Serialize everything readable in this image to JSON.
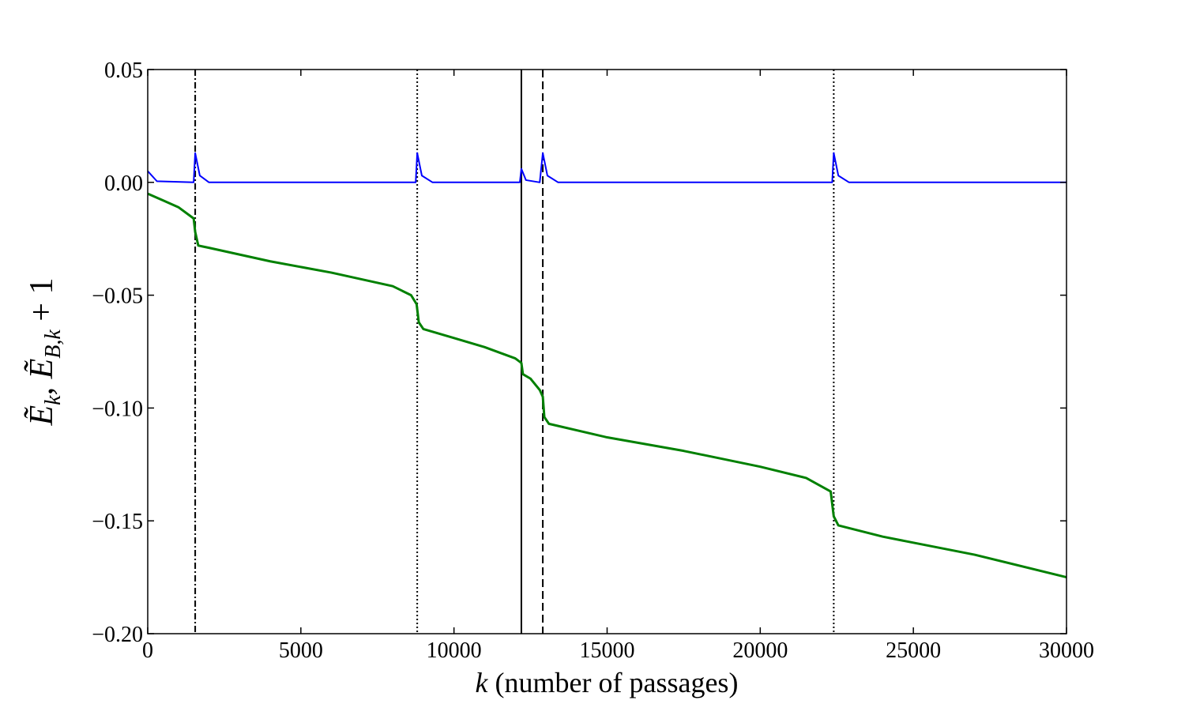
{
  "chart_data": {
    "type": "line",
    "xlabel": [
      "k",
      " (number of passages)"
    ],
    "ylabel": [
      "Ẽ",
      "k",
      ",  Ẽ",
      "B,k",
      " + 1"
    ],
    "xlim": [
      0,
      30000
    ],
    "ylim": [
      -0.2,
      0.05
    ],
    "xticks": [
      0,
      5000,
      10000,
      15000,
      20000,
      25000,
      30000
    ],
    "yticks": [
      {
        "value": -0.2,
        "label": "−0.20"
      },
      {
        "value": -0.15,
        "label": "−0.15"
      },
      {
        "value": -0.1,
        "label": "−0.10"
      },
      {
        "value": -0.05,
        "label": "−0.05"
      },
      {
        "value": 0,
        "label": "0.00"
      },
      {
        "value": 0.05,
        "label": "0.05"
      }
    ],
    "series": [
      {
        "color": "#0000ff",
        "x": [
          0,
          300,
          1500,
          1550,
          1700,
          2000,
          8750,
          8800,
          8950,
          9300,
          12150,
          12200,
          12350,
          12800,
          12900,
          13050,
          13400,
          22350,
          22400,
          22550,
          22900,
          30000
        ],
        "values": [
          0.005,
          0.0005,
          0,
          0.013,
          0.003,
          0,
          0,
          0.013,
          0.003,
          0,
          0,
          0.006,
          0.001,
          0,
          0.013,
          0.003,
          0,
          0,
          0.013,
          0.003,
          0,
          0
        ]
      },
      {
        "color": "#008000",
        "x": [
          0,
          500,
          1000,
          1500,
          1550,
          1650,
          2000,
          4000,
          6000,
          8000,
          8600,
          8780,
          8850,
          9000,
          10000,
          11000,
          12000,
          12200,
          12250,
          12500,
          12800,
          12900,
          12950,
          13100,
          15000,
          17500,
          20000,
          21500,
          22300,
          22400,
          22550,
          24000,
          27000,
          30000
        ],
        "values": [
          -0.005,
          -0.008,
          -0.011,
          -0.016,
          -0.022,
          -0.028,
          -0.029,
          -0.035,
          -0.04,
          -0.046,
          -0.05,
          -0.054,
          -0.062,
          -0.065,
          -0.069,
          -0.073,
          -0.078,
          -0.08,
          -0.085,
          -0.087,
          -0.092,
          -0.095,
          -0.104,
          -0.107,
          -0.113,
          -0.119,
          -0.126,
          -0.131,
          -0.137,
          -0.148,
          -0.152,
          -0.157,
          -0.165,
          -0.175
        ]
      }
    ],
    "vlines": [
      {
        "x": 1550,
        "style": "dashdot",
        "color": "#000000"
      },
      {
        "x": 8800,
        "style": "dotted",
        "color": "#000000"
      },
      {
        "x": 12200,
        "style": "solid",
        "color": "#000000"
      },
      {
        "x": 12900,
        "style": "dashed",
        "color": "#000000"
      },
      {
        "x": 22400,
        "style": "dotted",
        "color": "#000000"
      }
    ]
  }
}
